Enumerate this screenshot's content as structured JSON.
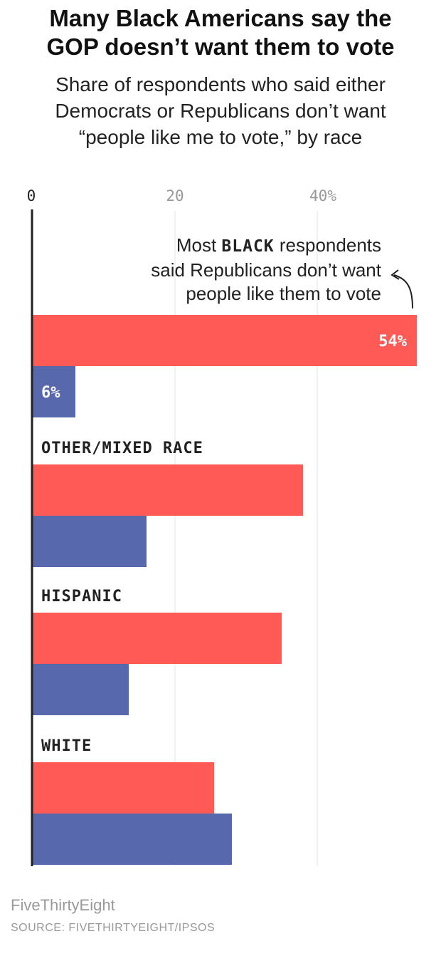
{
  "header": {
    "title_line1": "Many Black Americans say the",
    "title_line2": "GOP doesn’t want them to vote",
    "subtitle_line1": "Share of respondents who said either",
    "subtitle_line2": "Democrats or Republicans don’t want",
    "subtitle_line3": "“people like me to vote,” by race"
  },
  "annotation": {
    "line1_before": "Most ",
    "line1_strong": "BLACK",
    "line1_after": " respondents",
    "line2": "said Republicans don’t want",
    "line3": "people like them to vote"
  },
  "footer": {
    "brand": "FiveThirtyEight",
    "source": "SOURCE: FIVETHIRTYEIGHT/IPSOS"
  },
  "colors": {
    "republicans": "#ff5a55",
    "democrats": "#5768ac",
    "gridline": "#e6e6e6",
    "axis": "#222222"
  },
  "chart_data": {
    "type": "bar",
    "orientation": "horizontal",
    "xlim": [
      0,
      55
    ],
    "x_ticks": [
      {
        "value": 0,
        "label": "0"
      },
      {
        "value": 20,
        "label": "20"
      },
      {
        "value": 40,
        "label": "40%"
      }
    ],
    "categories": [
      "",
      "OTHER/MIXED RACE",
      "HISPANIC",
      "WHITE"
    ],
    "series": [
      {
        "key": "republicans",
        "values": [
          54,
          38,
          35,
          25.5
        ]
      },
      {
        "key": "democrats",
        "values": [
          6,
          16,
          13.5,
          28
        ]
      }
    ],
    "data_labels": [
      {
        "category_index": 0,
        "series_index": 0,
        "text": "54%"
      },
      {
        "category_index": 0,
        "series_index": 1,
        "text": "6%"
      }
    ]
  }
}
